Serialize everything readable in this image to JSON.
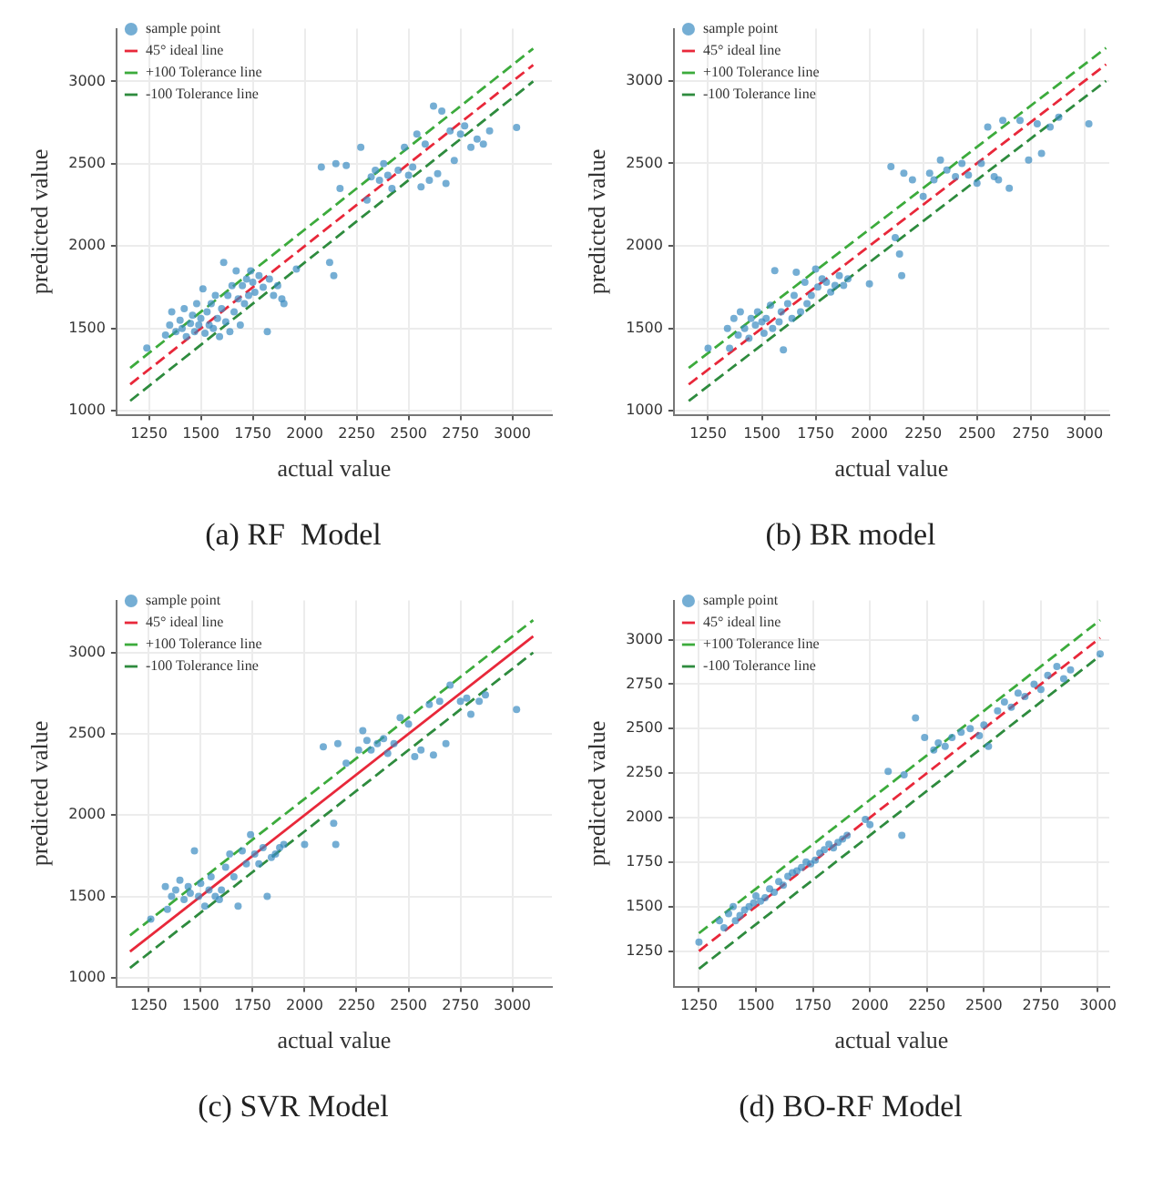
{
  "chart_data": [
    {
      "type": "scatter",
      "title": "(a) RF  Model",
      "xlabel": "actual value",
      "ylabel": "predicted value",
      "xlim": [
        1094,
        3190
      ],
      "ylim": [
        975,
        3320
      ],
      "xticks": [
        1250,
        1500,
        1750,
        2000,
        2250,
        2500,
        2750,
        3000
      ],
      "yticks": [
        1000,
        1500,
        2000,
        2500,
        3000
      ],
      "grid": true,
      "legend": "top left",
      "series": [
        {
          "name": "sample point",
          "marker": "circle",
          "color": "#3b8bc2",
          "x": [
            1240,
            1330,
            1350,
            1360,
            1380,
            1400,
            1410,
            1420,
            1430,
            1450,
            1460,
            1470,
            1480,
            1490,
            1500,
            1510,
            1520,
            1530,
            1540,
            1550,
            1560,
            1570,
            1580,
            1590,
            1600,
            1610,
            1620,
            1630,
            1640,
            1650,
            1660,
            1670,
            1680,
            1690,
            1700,
            1710,
            1720,
            1730,
            1740,
            1750,
            1760,
            1780,
            1800,
            1820,
            1830,
            1850,
            1870,
            1890,
            1900,
            1960,
            2120,
            2140,
            2080,
            2150,
            2170,
            2200,
            2270,
            2300,
            2320,
            2340,
            2360,
            2380,
            2400,
            2420,
            2450,
            2480,
            2500,
            2520,
            2540,
            2560,
            2580,
            2600,
            2620,
            2640,
            2660,
            2680,
            2700,
            2720,
            2750,
            2770,
            2800,
            2830,
            2860,
            2890,
            3020
          ],
          "values": [
            1380,
            1460,
            1520,
            1600,
            1480,
            1550,
            1500,
            1620,
            1450,
            1530,
            1580,
            1480,
            1650,
            1520,
            1560,
            1740,
            1470,
            1600,
            1520,
            1650,
            1500,
            1700,
            1560,
            1450,
            1620,
            1900,
            1540,
            1700,
            1480,
            1760,
            1600,
            1850,
            1680,
            1520,
            1760,
            1650,
            1800,
            1700,
            1850,
            1780,
            1720,
            1820,
            1750,
            1480,
            1800,
            1700,
            1760,
            1680,
            1650,
            1860,
            1900,
            1820,
            2480,
            2500,
            2350,
            2490,
            2600,
            2280,
            2420,
            2460,
            2400,
            2500,
            2430,
            2350,
            2460,
            2600,
            2430,
            2480,
            2680,
            2360,
            2620,
            2400,
            2850,
            2440,
            2820,
            2380,
            2700,
            2520,
            2680,
            2730,
            2600,
            2650,
            2620,
            2700,
            2720
          ]
        },
        {
          "name": "45° ideal line",
          "type": "line",
          "line_style": "dashed",
          "color": "#e8283a",
          "x": [
            1160,
            3100
          ],
          "values": [
            1160,
            3100
          ]
        },
        {
          "name": "+100 Tolerance line",
          "type": "line",
          "line_style": "dashed",
          "color": "#3cab3c",
          "x": [
            1160,
            3100
          ],
          "values": [
            1260,
            3200
          ]
        },
        {
          "name": "-100 Tolerance line",
          "type": "line",
          "line_style": "dashed",
          "color": "#2e8b3e",
          "x": [
            1160,
            3100
          ],
          "values": [
            1060,
            3000
          ]
        }
      ]
    },
    {
      "type": "scatter",
      "title": "(b) BR model",
      "xlabel": "actual value",
      "ylabel": "predicted value",
      "xlim": [
        1091,
        3115
      ],
      "ylim": [
        976,
        3316
      ],
      "xticks": [
        1250,
        1500,
        1750,
        2000,
        2250,
        2500,
        2750,
        3000
      ],
      "yticks": [
        1000,
        1500,
        2000,
        2500,
        3000
      ],
      "grid": true,
      "legend": "top left",
      "series": [
        {
          "name": "sample point",
          "marker": "circle",
          "color": "#3b8bc2",
          "x": [
            1250,
            1340,
            1350,
            1370,
            1390,
            1400,
            1420,
            1440,
            1450,
            1470,
            1480,
            1500,
            1510,
            1520,
            1540,
            1550,
            1560,
            1580,
            1590,
            1600,
            1620,
            1640,
            1650,
            1660,
            1680,
            1700,
            1710,
            1730,
            1750,
            1760,
            1780,
            1800,
            1820,
            1840,
            1860,
            1880,
            1900,
            2000,
            2120,
            2140,
            2150,
            2100,
            2160,
            2200,
            2250,
            2280,
            2300,
            2330,
            2360,
            2400,
            2430,
            2460,
            2500,
            2520,
            2550,
            2580,
            2600,
            2620,
            2650,
            2700,
            2740,
            2780,
            2800,
            2840,
            2880,
            3020
          ],
          "values": [
            1380,
            1500,
            1380,
            1560,
            1460,
            1600,
            1500,
            1440,
            1560,
            1520,
            1600,
            1540,
            1470,
            1560,
            1640,
            1500,
            1850,
            1540,
            1600,
            1370,
            1650,
            1560,
            1700,
            1840,
            1600,
            1780,
            1650,
            1700,
            1860,
            1750,
            1800,
            1780,
            1720,
            1760,
            1820,
            1760,
            1800,
            1770,
            2050,
            1950,
            1820,
            2480,
            2440,
            2400,
            2300,
            2440,
            2400,
            2520,
            2460,
            2420,
            2500,
            2430,
            2380,
            2500,
            2720,
            2420,
            2400,
            2760,
            2350,
            2760,
            2520,
            2740,
            2560,
            2720,
            2780,
            2740
          ]
        },
        {
          "name": "45° ideal line",
          "type": "line",
          "line_style": "dashed",
          "color": "#e8283a",
          "x": [
            1160,
            3100
          ],
          "values": [
            1160,
            3100
          ]
        },
        {
          "name": "+100 Tolerance line",
          "type": "line",
          "line_style": "dashed",
          "color": "#3cab3c",
          "x": [
            1160,
            3100
          ],
          "values": [
            1260,
            3200
          ]
        },
        {
          "name": "-100 Tolerance line",
          "type": "line",
          "line_style": "dashed",
          "color": "#2e8b3e",
          "x": [
            1160,
            3100
          ],
          "values": [
            1060,
            3000
          ]
        }
      ]
    },
    {
      "type": "scatter",
      "title": "(c) SVR Model",
      "xlabel": "actual value",
      "ylabel": "predicted value",
      "xlim": [
        1095,
        3190
      ],
      "ylim": [
        945,
        3320
      ],
      "xticks": [
        1250,
        1500,
        1750,
        2000,
        2250,
        2500,
        2750,
        3000
      ],
      "yticks": [
        1000,
        1500,
        2000,
        2500,
        3000
      ],
      "grid": true,
      "legend": "top left",
      "series": [
        {
          "name": "sample point",
          "marker": "circle",
          "color": "#3b8bc2",
          "x": [
            1260,
            1330,
            1340,
            1360,
            1380,
            1400,
            1420,
            1440,
            1450,
            1470,
            1490,
            1500,
            1520,
            1540,
            1550,
            1570,
            1590,
            1600,
            1620,
            1640,
            1660,
            1680,
            1700,
            1720,
            1740,
            1760,
            1780,
            1800,
            1820,
            1840,
            1860,
            1880,
            1900,
            2000,
            2140,
            2150,
            2090,
            2160,
            2200,
            2260,
            2280,
            2300,
            2320,
            2350,
            2380,
            2400,
            2430,
            2460,
            2500,
            2530,
            2560,
            2600,
            2620,
            2650,
            2680,
            2700,
            2750,
            2780,
            2800,
            2840,
            2870,
            3020
          ],
          "values": [
            1360,
            1560,
            1420,
            1500,
            1540,
            1600,
            1480,
            1560,
            1520,
            1780,
            1500,
            1580,
            1440,
            1540,
            1620,
            1500,
            1480,
            1540,
            1680,
            1760,
            1620,
            1440,
            1780,
            1700,
            1880,
            1760,
            1700,
            1800,
            1500,
            1740,
            1760,
            1800,
            1820,
            1820,
            1950,
            1820,
            2420,
            2440,
            2320,
            2400,
            2520,
            2460,
            2400,
            2440,
            2470,
            2380,
            2440,
            2600,
            2560,
            2360,
            2400,
            2680,
            2370,
            2700,
            2440,
            2800,
            2700,
            2720,
            2620,
            2700,
            2740,
            2650
          ]
        },
        {
          "name": "45° ideal line",
          "type": "line",
          "line_style": "solid",
          "color": "#e8283a",
          "x": [
            1160,
            3100
          ],
          "values": [
            1160,
            3100
          ]
        },
        {
          "name": "+100 Tolerance line",
          "type": "line",
          "line_style": "dashed",
          "color": "#3cab3c",
          "x": [
            1160,
            3100
          ],
          "values": [
            1260,
            3200
          ]
        },
        {
          "name": "-100 Tolerance line",
          "type": "line",
          "line_style": "dashed",
          "color": "#2e8b3e",
          "x": [
            1160,
            3100
          ],
          "values": [
            1060,
            3000
          ]
        }
      ]
    },
    {
      "type": "scatter",
      "title": "(d) BO-RF Model",
      "xlabel": "actual value",
      "ylabel": "predicted value",
      "xlim": [
        1140,
        3050
      ],
      "ylim": [
        1050,
        3220
      ],
      "xticks": [
        1250,
        1500,
        1750,
        2000,
        2250,
        2500,
        2750,
        3000
      ],
      "yticks": [
        1250,
        1500,
        1750,
        2000,
        2250,
        2500,
        2750,
        3000
      ],
      "grid": true,
      "legend": "top left",
      "series": [
        {
          "name": "sample point",
          "marker": "circle",
          "color": "#3b8bc2",
          "x": [
            1250,
            1340,
            1360,
            1380,
            1400,
            1410,
            1430,
            1450,
            1470,
            1490,
            1500,
            1520,
            1540,
            1560,
            1580,
            1600,
            1620,
            1640,
            1660,
            1680,
            1700,
            1720,
            1740,
            1760,
            1780,
            1800,
            1820,
            1840,
            1860,
            1880,
            1900,
            1980,
            2000,
            2080,
            2140,
            2150,
            2200,
            2240,
            2280,
            2300,
            2330,
            2360,
            2400,
            2440,
            2480,
            2500,
            2520,
            2560,
            2590,
            2620,
            2650,
            2680,
            2720,
            2750,
            2780,
            2820,
            2850,
            2880,
            3010
          ],
          "values": [
            1300,
            1420,
            1380,
            1460,
            1500,
            1420,
            1450,
            1480,
            1500,
            1520,
            1560,
            1530,
            1550,
            1600,
            1580,
            1640,
            1620,
            1670,
            1690,
            1700,
            1720,
            1750,
            1740,
            1760,
            1800,
            1820,
            1850,
            1830,
            1860,
            1880,
            1900,
            1990,
            1960,
            2260,
            1900,
            2240,
            2560,
            2450,
            2380,
            2420,
            2400,
            2450,
            2480,
            2500,
            2460,
            2520,
            2400,
            2600,
            2650,
            2620,
            2700,
            2680,
            2750,
            2720,
            2800,
            2850,
            2780,
            2830,
            2920
          ]
        },
        {
          "name": "45° ideal line",
          "type": "line",
          "line_style": "dashed",
          "color": "#e8283a",
          "x": [
            1250,
            3010
          ],
          "values": [
            1250,
            3010
          ]
        },
        {
          "name": "+100 Tolerance line",
          "type": "line",
          "line_style": "dashed",
          "color": "#3cab3c",
          "x": [
            1250,
            3010
          ],
          "values": [
            1350,
            3110
          ]
        },
        {
          "name": "-100 Tolerance line",
          "type": "line",
          "line_style": "dashed",
          "color": "#2e8b3e",
          "x": [
            1250,
            3010
          ],
          "values": [
            1150,
            2910
          ]
        }
      ]
    }
  ]
}
